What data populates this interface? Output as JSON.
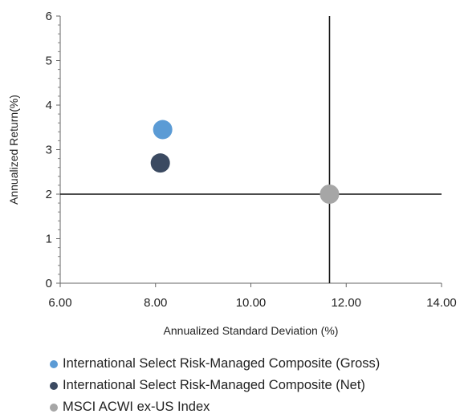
{
  "chart_data": {
    "type": "scatter",
    "title": "",
    "xlabel": "Annualized Standard Deviation (%)",
    "ylabel": "Annualized Return(%)",
    "xlim": [
      6,
      14
    ],
    "ylim": [
      0,
      6
    ],
    "x_ticks": [
      "6.00",
      "8.00",
      "10.00",
      "12.00",
      "14.00"
    ],
    "y_ticks": [
      "0",
      "1",
      "2",
      "3",
      "4",
      "5",
      "6"
    ],
    "grid": false,
    "legend_position": "bottom",
    "reference_lines": {
      "x": 11.65,
      "y": 2.0
    },
    "series": [
      {
        "name": "International Select Risk-Managed Composite (Gross)",
        "color": "#5b9bd5",
        "x": 8.15,
        "y": 3.45
      },
      {
        "name": "International Select Risk-Managed Composite (Net)",
        "color": "#3b4a61",
        "x": 8.1,
        "y": 2.7
      },
      {
        "name": "MSCI ACWI ex-US Index",
        "color": "#a6a6a6",
        "x": 11.65,
        "y": 2.0
      }
    ]
  }
}
